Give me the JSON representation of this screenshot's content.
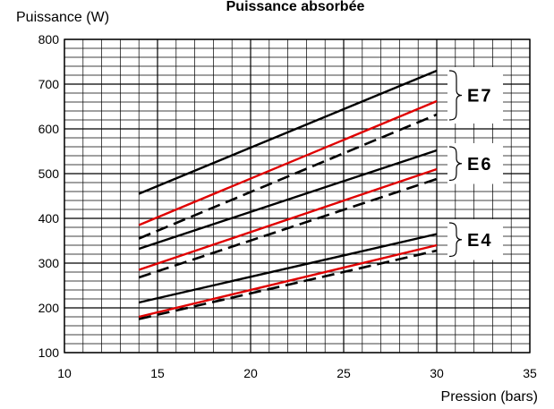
{
  "chart_data": {
    "type": "line",
    "title": "Puissance  absorbée",
    "xlabel": "Pression  (bars)",
    "ylabel": "Puissance (W)",
    "xlim": [
      10,
      35
    ],
    "ylim": [
      100,
      800
    ],
    "xticks": [
      10,
      15,
      20,
      25,
      30,
      35
    ],
    "yticks": [
      100,
      200,
      300,
      400,
      500,
      600,
      700,
      800
    ],
    "grid": true,
    "groups": [
      {
        "label": "E7",
        "range": [
          620,
          730
        ]
      },
      {
        "label": "E6",
        "range": [
          485,
          560
        ]
      },
      {
        "label": "E4",
        "range": [
          315,
          390
        ]
      }
    ],
    "series": [
      {
        "color": "#000000",
        "style": "solid",
        "x": [
          14,
          30
        ],
        "y": [
          455,
          730
        ]
      },
      {
        "color": "#e00000",
        "style": "solid",
        "x": [
          14,
          30
        ],
        "y": [
          385,
          662
        ]
      },
      {
        "color": "#000000",
        "style": "dashed",
        "x": [
          14,
          30
        ],
        "y": [
          355,
          632
        ]
      },
      {
        "color": "#000000",
        "style": "solid",
        "x": [
          14,
          30
        ],
        "y": [
          332,
          552
        ]
      },
      {
        "color": "#e00000",
        "style": "solid",
        "x": [
          14,
          30
        ],
        "y": [
          285,
          510
        ]
      },
      {
        "color": "#000000",
        "style": "dashed",
        "x": [
          14,
          30
        ],
        "y": [
          268,
          488
        ]
      },
      {
        "color": "#000000",
        "style": "solid",
        "x": [
          14,
          30
        ],
        "y": [
          212,
          365
        ]
      },
      {
        "color": "#e00000",
        "style": "solid",
        "x": [
          14,
          30
        ],
        "y": [
          180,
          340
        ]
      },
      {
        "color": "#000000",
        "style": "dashed",
        "x": [
          14,
          30
        ],
        "y": [
          175,
          328
        ]
      }
    ]
  }
}
